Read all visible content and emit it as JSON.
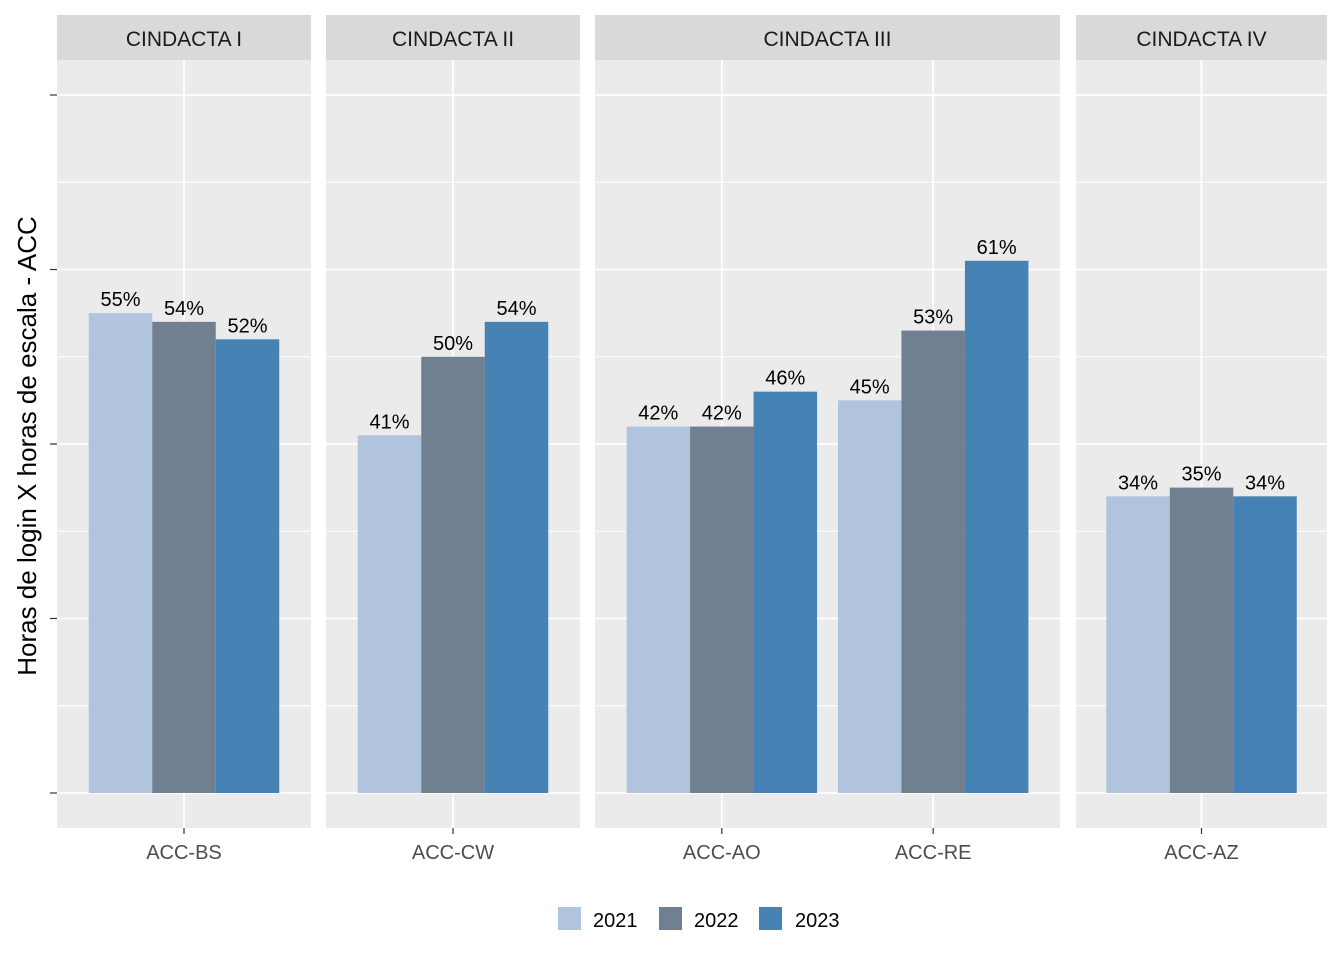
{
  "chart_data": {
    "type": "bar",
    "ylabel": "Horas de login X horas de escala - ACC",
    "xlabel": "",
    "ylim": [
      0,
      0.8
    ],
    "y_ticks": [
      0,
      0.2,
      0.4,
      0.6,
      0.8
    ],
    "y_tick_labels_visible": false,
    "grid": true,
    "legend_position": "bottom",
    "series": [
      {
        "name": "2021",
        "color": "#b0c4de"
      },
      {
        "name": "2022",
        "color": "#708090"
      },
      {
        "name": "2023",
        "color": "#4682b4"
      }
    ],
    "panels": [
      {
        "label": "CINDACTA I",
        "groups": [
          {
            "category": "ACC-BS",
            "values": [
              0.55,
              0.54,
              0.52
            ],
            "labels": [
              "55%",
              "54%",
              "52%"
            ]
          }
        ]
      },
      {
        "label": "CINDACTA II",
        "groups": [
          {
            "category": "ACC-CW",
            "values": [
              0.41,
              0.5,
              0.54
            ],
            "labels": [
              "41%",
              "50%",
              "54%"
            ]
          }
        ]
      },
      {
        "label": "CINDACTA III",
        "groups": [
          {
            "category": "ACC-AO",
            "values": [
              0.42,
              0.42,
              0.46
            ],
            "labels": [
              "42%",
              "42%",
              "46%"
            ]
          },
          {
            "category": "ACC-RE",
            "values": [
              0.45,
              0.53,
              0.61
            ],
            "labels": [
              "45%",
              "53%",
              "61%"
            ]
          }
        ]
      },
      {
        "label": "CINDACTA IV",
        "groups": [
          {
            "category": "ACC-AZ",
            "values": [
              0.34,
              0.35,
              0.34
            ],
            "labels": [
              "34%",
              "35%",
              "34%"
            ]
          }
        ]
      }
    ]
  }
}
